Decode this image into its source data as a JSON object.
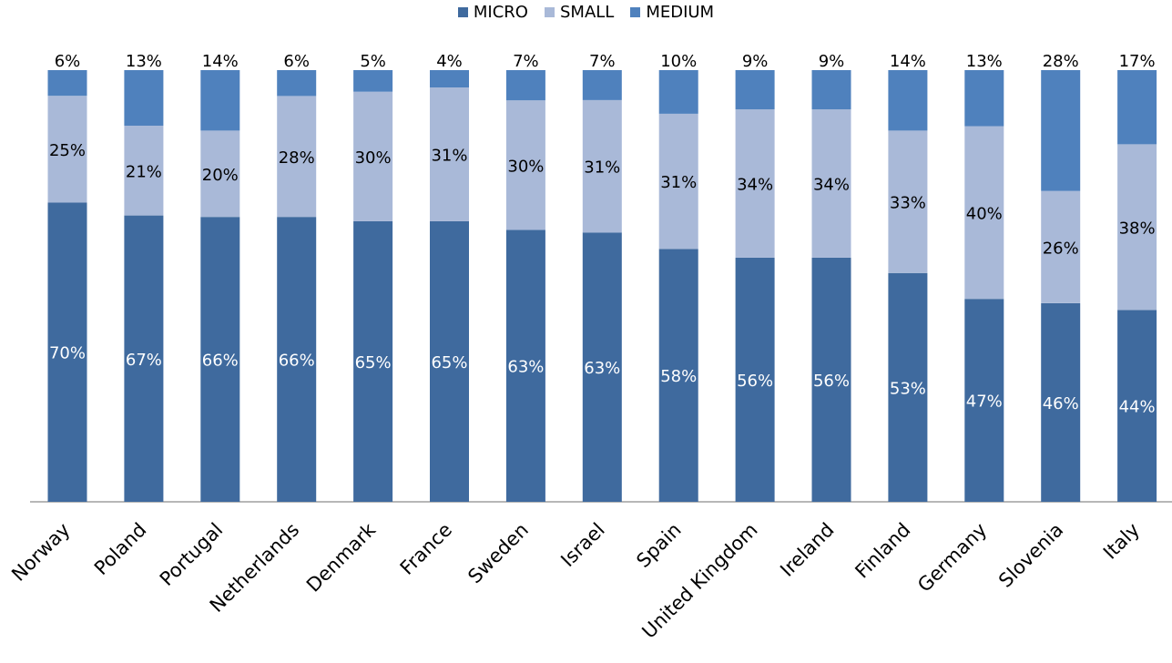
{
  "chart_data": {
    "type": "bar",
    "stacked": true,
    "percent_stacked": true,
    "categories": [
      "Norway",
      "Poland",
      "Portugal",
      "Netherlands",
      "Denmark",
      "France",
      "Sweden",
      "Israel",
      "Spain",
      "United Kingdom",
      "Ireland",
      "Finland",
      "Germany",
      "Slovenia",
      "Italy"
    ],
    "series": [
      {
        "name": "MICRO",
        "color": "#3F6A9E",
        "values": [
          70,
          67,
          66,
          66,
          65,
          65,
          63,
          63,
          58,
          56,
          56,
          53,
          47,
          46,
          44
        ],
        "labels": [
          "70%",
          "67%",
          "66%",
          "66%",
          "65%",
          "65%",
          "63%",
          "63%",
          "58%",
          "56%",
          "56%",
          "53%",
          "47%",
          "46%",
          "44%"
        ]
      },
      {
        "name": "SMALL",
        "color": "#A9B9D8",
        "values": [
          25,
          21,
          20,
          28,
          30,
          31,
          30,
          31,
          31,
          34,
          34,
          33,
          40,
          26,
          38
        ],
        "labels": [
          "25%",
          "21%",
          "20%",
          "28%",
          "30%",
          "31%",
          "30%",
          "31%",
          "31%",
          "34%",
          "34%",
          "33%",
          "40%",
          "26%",
          "38%"
        ]
      },
      {
        "name": "MEDIUM",
        "color": "#4F81BD",
        "values": [
          6,
          13,
          14,
          6,
          5,
          4,
          7,
          7,
          10,
          9,
          9,
          14,
          13,
          28,
          17
        ],
        "labels": [
          "6%",
          "13%",
          "14%",
          "6%",
          "5%",
          "4%",
          "7%",
          "7%",
          "10%",
          "9%",
          "9%",
          "14%",
          "13%",
          "28%",
          "17%"
        ]
      }
    ],
    "title": "",
    "xlabel": "",
    "ylabel": "",
    "ylim": [
      0,
      100
    ],
    "grid": false,
    "legend_position": "top-center",
    "x_tick_rotation": "diagonal"
  }
}
